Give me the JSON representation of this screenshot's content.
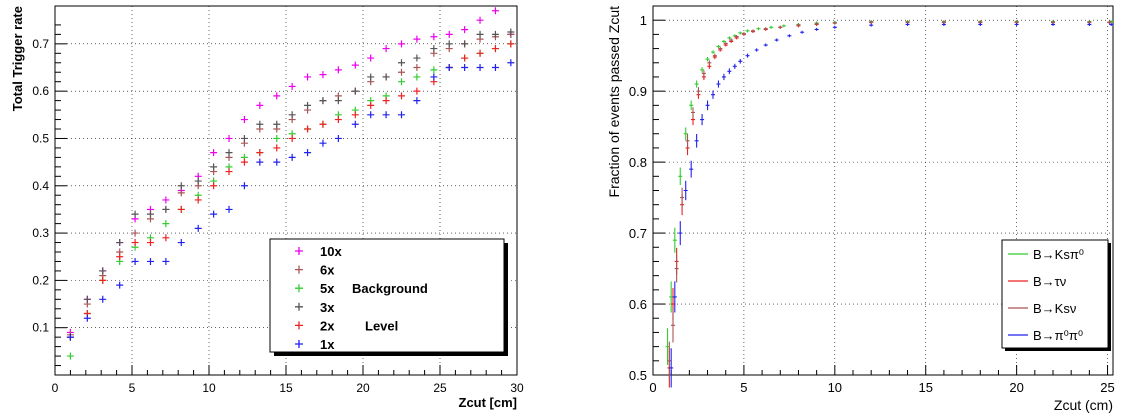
{
  "chart_data": [
    {
      "type": "scatter",
      "title": "",
      "xlabel": "Zcut [cm]",
      "ylabel": "Total Trigger rate",
      "xlim": [
        0,
        30
      ],
      "ylim": [
        0,
        0.78
      ],
      "xticks": [
        "0",
        "5",
        "10",
        "15",
        "20",
        "25",
        "30"
      ],
      "yticks": [
        "0.1",
        "0.2",
        "0.3",
        "0.4",
        "0.5",
        "0.6",
        "0.7"
      ],
      "grid": true,
      "legend_position": "bottom-right",
      "legend_annotations": [
        "Background",
        "Level"
      ],
      "x": [
        1,
        2.1,
        3.1,
        4.2,
        5.2,
        6.2,
        7.2,
        8.2,
        9.3,
        10.3,
        11.3,
        12.3,
        13.3,
        14.4,
        15.4,
        16.4,
        17.4,
        18.4,
        19.5,
        20.5,
        21.5,
        22.5,
        23.5,
        24.6,
        25.6,
        26.6,
        27.6,
        28.6,
        29.6
      ],
      "series": [
        {
          "name": "10x",
          "color": "#ee00ee",
          "values": [
            0.09,
            0.16,
            0.22,
            0.28,
            0.33,
            0.35,
            0.37,
            0.39,
            0.42,
            0.47,
            0.5,
            0.54,
            0.57,
            0.59,
            0.61,
            0.63,
            0.635,
            0.645,
            0.655,
            0.67,
            0.69,
            0.7,
            0.71,
            0.715,
            0.72,
            0.73,
            0.75,
            0.77,
            0.72
          ]
        },
        {
          "name": "6x",
          "color": "#aa5555",
          "values": [
            0.085,
            0.15,
            0.21,
            0.26,
            0.3,
            0.33,
            0.35,
            0.385,
            0.4,
            0.43,
            0.46,
            0.49,
            0.52,
            0.52,
            0.54,
            0.56,
            0.58,
            0.59,
            0.6,
            0.62,
            0.63,
            0.64,
            0.65,
            0.68,
            0.69,
            0.7,
            0.71,
            0.715,
            0.72
          ]
        },
        {
          "name": "5x",
          "color": "#33cc33",
          "values": [
            0.04,
            0.13,
            0.2,
            0.24,
            0.27,
            0.29,
            0.32,
            0.35,
            0.38,
            0.41,
            0.44,
            0.46,
            0.47,
            0.5,
            0.51,
            0.52,
            0.53,
            0.55,
            0.56,
            0.58,
            0.59,
            0.62,
            0.63,
            0.645,
            0.65,
            0.67,
            0.68,
            0.69,
            0.7
          ]
        },
        {
          "name": "3x",
          "color": "#555555",
          "values": [
            0.08,
            0.16,
            0.22,
            0.28,
            0.34,
            0.34,
            0.35,
            0.4,
            0.41,
            0.44,
            0.47,
            0.5,
            0.53,
            0.53,
            0.55,
            0.57,
            0.58,
            0.58,
            0.6,
            0.63,
            0.63,
            0.66,
            0.67,
            0.69,
            0.7,
            0.7,
            0.72,
            0.72,
            0.725
          ]
        },
        {
          "name": "2x",
          "color": "#ee2222",
          "values": [
            0.08,
            0.13,
            0.2,
            0.25,
            0.28,
            0.28,
            0.29,
            0.35,
            0.37,
            0.4,
            0.43,
            0.45,
            0.47,
            0.48,
            0.5,
            0.52,
            0.53,
            0.54,
            0.55,
            0.57,
            0.58,
            0.59,
            0.6,
            0.62,
            0.65,
            0.67,
            0.68,
            0.69,
            0.7
          ]
        },
        {
          "name": "1x",
          "color": "#2222ee",
          "values": [
            0.08,
            0.12,
            0.16,
            0.19,
            0.24,
            0.24,
            0.24,
            0.28,
            0.31,
            0.34,
            0.35,
            0.4,
            0.45,
            0.45,
            0.46,
            0.47,
            0.49,
            0.5,
            0.53,
            0.55,
            0.55,
            0.55,
            0.58,
            0.63,
            0.65,
            0.65,
            0.65,
            0.65,
            0.66
          ]
        }
      ]
    },
    {
      "type": "scatter",
      "title": "",
      "xlabel": "Zcut (cm)",
      "ylabel": "Fraction of events passed Zcut",
      "xlim": [
        0,
        25.3
      ],
      "ylim": [
        0.5,
        1.02
      ],
      "xticks": [
        "0",
        "5",
        "10",
        "15",
        "20",
        "25"
      ],
      "yticks": [
        "0.5",
        "0.6",
        "0.7",
        "0.8",
        "0.9",
        "1"
      ],
      "grid": true,
      "legend_position": "bottom-right",
      "error_bars": true,
      "series": [
        {
          "name": "B→Ksπ⁰",
          "color": "#33cc33",
          "x": [
            0.8,
            1.0,
            1.2,
            1.5,
            1.8,
            2.1,
            2.4,
            2.7,
            3.0,
            3.3,
            3.6,
            3.9,
            4.2,
            4.5,
            4.8,
            5.2,
            5.8,
            6.5,
            7.2,
            8.0,
            9.0,
            10.0,
            12.0,
            14.0,
            16.0,
            18.0,
            20.0,
            22.0,
            24.0,
            25.2
          ],
          "values": [
            0.54,
            0.61,
            0.69,
            0.78,
            0.84,
            0.88,
            0.91,
            0.93,
            0.945,
            0.955,
            0.963,
            0.97,
            0.975,
            0.978,
            0.982,
            0.985,
            0.988,
            0.99,
            0.992,
            0.994,
            0.996,
            0.997,
            0.998,
            0.998,
            0.998,
            0.998,
            0.998,
            0.998,
            0.998,
            0.998
          ]
        },
        {
          "name": "B→τν",
          "color": "#ee2222",
          "x": [
            0.9,
            1.1,
            1.3,
            1.6,
            1.9,
            2.2,
            2.5,
            2.8,
            3.1,
            3.4,
            3.7,
            4.0,
            4.3,
            4.6,
            5.0,
            5.5,
            6.2,
            7.0,
            8.0,
            9.0,
            10.0,
            12.0,
            14.0,
            16.0,
            18.0,
            20.0,
            22.0,
            24.0,
            25.1
          ],
          "values": [
            0.51,
            0.6,
            0.66,
            0.74,
            0.82,
            0.86,
            0.895,
            0.92,
            0.935,
            0.948,
            0.958,
            0.965,
            0.97,
            0.975,
            0.98,
            0.984,
            0.987,
            0.99,
            0.992,
            0.994,
            0.996,
            0.997,
            0.997,
            0.997,
            0.997,
            0.997,
            0.997,
            0.997,
            0.997
          ]
        },
        {
          "name": "B→Ksν",
          "color": "#aa5555",
          "x": [
            0.9,
            1.1,
            1.3,
            1.6,
            1.9,
            2.2,
            2.5,
            2.8,
            3.1,
            3.4,
            3.7,
            4.0,
            4.3,
            4.6,
            5.0,
            5.5,
            6.2,
            7.0,
            8.0,
            9.0,
            10.0,
            12.0,
            14.0,
            16.0,
            18.0,
            20.0,
            22.0,
            24.0,
            25.1
          ],
          "values": [
            0.52,
            0.57,
            0.65,
            0.75,
            0.83,
            0.87,
            0.9,
            0.925,
            0.94,
            0.95,
            0.96,
            0.967,
            0.972,
            0.977,
            0.981,
            0.985,
            0.988,
            0.99,
            0.993,
            0.995,
            0.996,
            0.997,
            0.997,
            0.997,
            0.997,
            0.997,
            0.997,
            0.997,
            0.997
          ]
        },
        {
          "name": "B→π⁰π⁰",
          "color": "#2222ee",
          "x": [
            1.0,
            1.2,
            1.5,
            1.8,
            2.1,
            2.4,
            2.7,
            3.0,
            3.3,
            3.6,
            3.9,
            4.2,
            4.5,
            4.8,
            5.2,
            5.7,
            6.2,
            6.8,
            7.5,
            8.2,
            9.0,
            10.0,
            12.0,
            14.0,
            16.0,
            18.0,
            20.0,
            22.0,
            24.0,
            25.2
          ],
          "values": [
            0.51,
            0.61,
            0.7,
            0.76,
            0.79,
            0.83,
            0.86,
            0.88,
            0.895,
            0.91,
            0.92,
            0.928,
            0.935,
            0.942,
            0.95,
            0.958,
            0.965,
            0.972,
            0.978,
            0.983,
            0.987,
            0.99,
            0.993,
            0.994,
            0.994,
            0.994,
            0.994,
            0.994,
            0.994,
            0.994
          ]
        }
      ]
    }
  ]
}
